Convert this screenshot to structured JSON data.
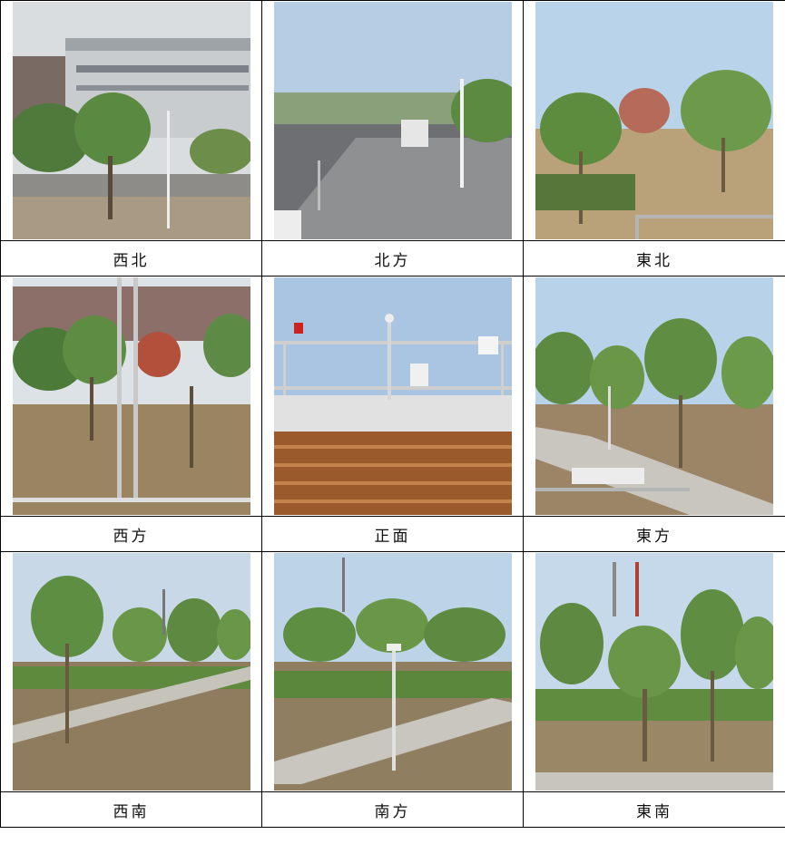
{
  "photos": [
    {
      "label": "西北",
      "scene": "building"
    },
    {
      "label": "北方",
      "scene": "road"
    },
    {
      "label": "東北",
      "scene": "trees-rail"
    },
    {
      "label": "西方",
      "scene": "tower-trees"
    },
    {
      "label": "正面",
      "scene": "station"
    },
    {
      "label": "東方",
      "scene": "path-rail"
    },
    {
      "label": "西南",
      "scene": "path-pylons"
    },
    {
      "label": "南方",
      "scene": "path-lamp"
    },
    {
      "label": "東南",
      "scene": "trees-pylons"
    }
  ]
}
